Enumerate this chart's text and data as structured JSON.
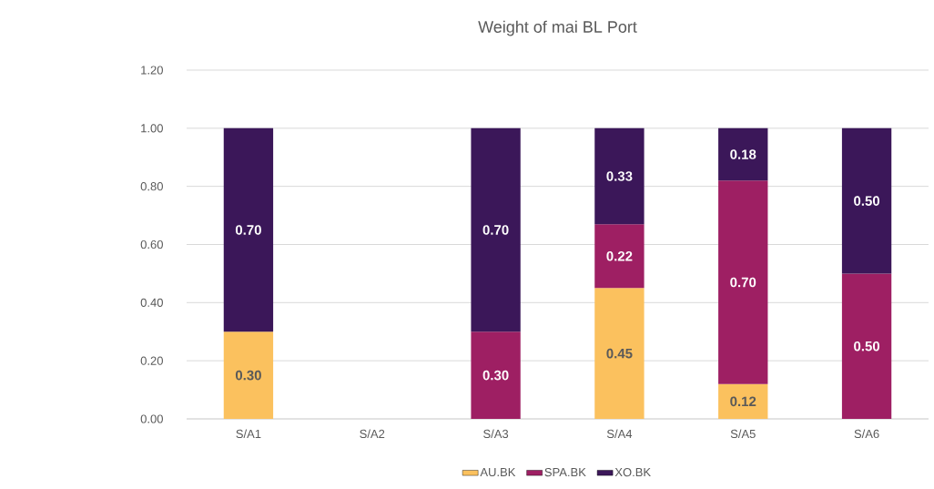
{
  "chart_data": {
    "type": "bar",
    "title": "Weight of mai BL Port",
    "stacked": true,
    "categories": [
      "S/A1",
      "S/A2",
      "S/A3",
      "S/A4",
      "S/A5",
      "S/A6"
    ],
    "series": [
      {
        "name": "AU.BK",
        "color": "#fbc15e",
        "values": [
          0.3,
          null,
          null,
          0.45,
          0.12,
          null
        ],
        "value_labels": [
          "0.30",
          null,
          null,
          "0.45",
          "0.12",
          null
        ]
      },
      {
        "name": "SPA.BK",
        "color": "#9e1f63",
        "values": [
          null,
          null,
          0.3,
          0.22,
          0.7,
          0.5
        ],
        "value_labels": [
          null,
          null,
          "0.30",
          "0.22",
          "0.70",
          "0.50"
        ]
      },
      {
        "name": "XO.BK",
        "color": "#3b1759",
        "values": [
          0.7,
          null,
          0.7,
          0.33,
          0.18,
          0.5
        ],
        "value_labels": [
          "0.70",
          null,
          "0.70",
          "0.33",
          "0.18",
          "0.50"
        ]
      }
    ],
    "ylim": [
      0,
      1.2
    ],
    "yticks": [
      {
        "value": 0,
        "label": "0.00"
      },
      {
        "value": 0.2,
        "label": "0.20"
      },
      {
        "value": 0.4,
        "label": "0.40"
      },
      {
        "value": 0.6,
        "label": "0.60"
      },
      {
        "value": 0.8,
        "label": "0.80"
      },
      {
        "value": 1.0,
        "label": "1.00"
      },
      {
        "value": 1.2,
        "label": "1.20"
      }
    ],
    "grid": "y",
    "legend": "bottom"
  }
}
